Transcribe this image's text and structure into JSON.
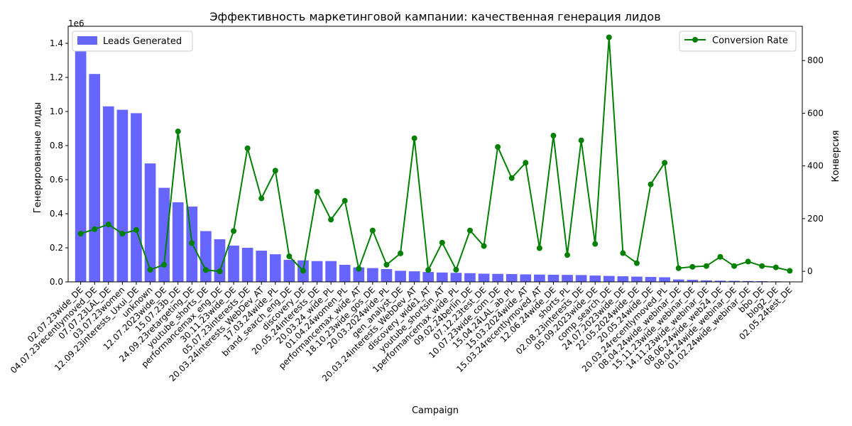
{
  "chart_data": {
    "type": "bar",
    "title": "Эффективность маркетинговой кампании: качественная генерация лидов",
    "xlabel": "Campaign",
    "ylabel": "Генерированные лиды",
    "ylabel_right": "Конверсия",
    "y_offset_label": "1e6",
    "ylim": [
      0,
      1500000
    ],
    "ylim_right": [
      -40,
      930
    ],
    "yticks": [
      0.0,
      0.2,
      0.4,
      0.6,
      0.8,
      1.0,
      1.2,
      1.4
    ],
    "yticks_right": [
      0,
      200,
      400,
      600,
      800
    ],
    "grid": false,
    "categories": [
      "02.07.23wide_DE",
      "04.07.23recentlymoved_DE",
      "07.07.23LAL_DE",
      "03.07.23women",
      "12.09.23interests_Uxui_DE",
      "unknown",
      "12.07.2023wide_DE",
      "15.07.23b_DE",
      "24.09.23retargeting_DE",
      "youtube_shorts_DE",
      "performancemax_eng_DE",
      "30.11.23wide_DE",
      "05.07.23interests_DE",
      "20.03.24interests_WebDev_AT",
      "17.03.24wide_PL",
      "brand_search_eng_DE",
      "discovery_DE",
      "20.05.24interests_DE",
      "20.03.24_wide_PL",
      "01.04.24women_PL",
      "performancemax_wide_AT",
      "18.10.23wide_gos_DE",
      "20.03.2024wide_PL",
      "gen_analyst_DE",
      "20.03.24interests_WebDev_AT",
      "discovery_wide1_AT",
      "youtube_shortsin_AT",
      "1performancemax_wide_PL",
      "09.02.24berlin_DE",
      "07.12.23test_DE",
      "10.07.23wide_com_DE",
      "15.04.24LAL_ab_PL",
      "15.03.2024wide_AT",
      "15.03.24recentlymoved_AT",
      "12.06.24wide_DE",
      "shorts_PL",
      "02.08.23interests_DE",
      "05.09.2023wide_DE",
      "comp_search_DE",
      "24.07.2023wide_DE",
      "22.05.2024wide_DE",
      "20.05.24wide_DE",
      "20.03.24recentlymoved_PL",
      "08.04.24wide_webinar_DE",
      "15.11.23wide_webinar_DE",
      "14.11.23wide_webinar_DE",
      "08.06.24wide_web24_DE",
      "08.04.24wide_webinar_DE",
      "01.02.24wide_webinar_DE",
      "bbo_DE",
      "blog2_DE",
      "02.05.24test_DE"
    ],
    "series": [
      {
        "name": "Leads Generated",
        "type": "bar",
        "color": "#6666ff",
        "values": [
          1460000,
          1220000,
          1030000,
          1010000,
          990000,
          695000,
          552000,
          467000,
          442000,
          298000,
          250000,
          213000,
          200000,
          183000,
          162000,
          129000,
          126000,
          122000,
          122000,
          100000,
          85000,
          81000,
          75000,
          65000,
          62000,
          58000,
          55000,
          53000,
          51000,
          48000,
          47000,
          46000,
          44000,
          43000,
          42000,
          41000,
          40000,
          37000,
          35000,
          33000,
          31000,
          29000,
          27000,
          14000,
          12000,
          9000,
          7000,
          6000,
          5000,
          4000,
          3000,
          2000
        ]
      },
      {
        "name": "Conversion Rate",
        "type": "line",
        "color": "#008000",
        "values": [
          143,
          160,
          178,
          143,
          157,
          6,
          25,
          531,
          107,
          5,
          0,
          153,
          467,
          277,
          382,
          57,
          2,
          302,
          196,
          268,
          10,
          155,
          25,
          68,
          505,
          5,
          109,
          6,
          155,
          96,
          472,
          354,
          412,
          88,
          515,
          62,
          497,
          104,
          888,
          69,
          31,
          330,
          412,
          12,
          17,
          20,
          55,
          20,
          37,
          20,
          15,
          2
        ]
      }
    ]
  },
  "legend_left": {
    "label": "Leads Generated",
    "color": "#6666ff",
    "placement": "upper-left"
  },
  "legend_right": {
    "label": "Conversion Rate",
    "color": "#008000",
    "placement": "upper-right"
  }
}
